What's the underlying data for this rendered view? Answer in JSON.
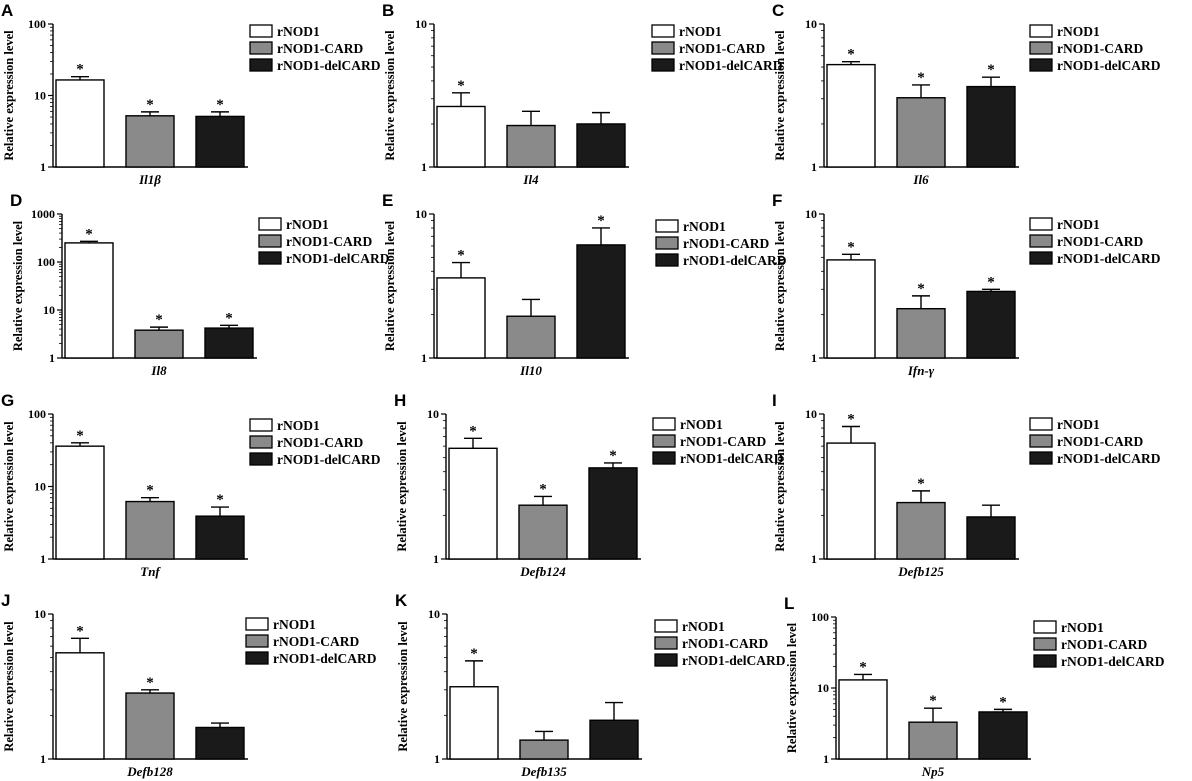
{
  "figure": {
    "legend": [
      "rNOD1",
      "rNOD1-CARD",
      "rNOD1-delCARD"
    ],
    "bar_colors": [
      "#ffffff",
      "#8a8a8a",
      "#1a1a1a"
    ],
    "ylabel": "Relative  expression level"
  },
  "chart_data": [
    {
      "type": "bar",
      "panel": "A",
      "gene": "Il1β",
      "scale": "log",
      "ylim": [
        1,
        100
      ],
      "ticks": [
        "1",
        "10",
        "100"
      ],
      "series": [
        {
          "name": "rNOD1",
          "value": 16.5,
          "error": 1.8,
          "sig": true
        },
        {
          "name": "rNOD1-CARD",
          "value": 5.2,
          "error": 0.7,
          "sig": true
        },
        {
          "name": "rNOD1-delCARD",
          "value": 5.1,
          "error": 0.8,
          "sig": true
        }
      ]
    },
    {
      "type": "bar",
      "panel": "B",
      "gene": "Il4",
      "scale": "log",
      "ylim": [
        1,
        10
      ],
      "ticks": [
        "1",
        "10"
      ],
      "series": [
        {
          "name": "rNOD1",
          "value": 2.65,
          "error": 0.65,
          "sig": true
        },
        {
          "name": "rNOD1-CARD",
          "value": 1.95,
          "error": 0.5,
          "sig": false
        },
        {
          "name": "rNOD1-delCARD",
          "value": 2.0,
          "error": 0.4,
          "sig": false
        }
      ]
    },
    {
      "type": "bar",
      "panel": "C",
      "gene": "Il6",
      "scale": "log",
      "ylim": [
        1,
        10
      ],
      "ticks": [
        "1",
        "10"
      ],
      "series": [
        {
          "name": "rNOD1",
          "value": 5.2,
          "error": 0.25,
          "sig": true
        },
        {
          "name": "rNOD1-CARD",
          "value": 3.05,
          "error": 0.7,
          "sig": true
        },
        {
          "name": "rNOD1-delCARD",
          "value": 3.65,
          "error": 0.6,
          "sig": true
        }
      ]
    },
    {
      "type": "bar",
      "panel": "D",
      "gene": "Il8",
      "scale": "log",
      "ylim": [
        1,
        1000
      ],
      "ticks": [
        "1",
        "10",
        "100",
        "1000"
      ],
      "series": [
        {
          "name": "rNOD1",
          "value": 250,
          "error": 20,
          "sig": true
        },
        {
          "name": "rNOD1-CARD",
          "value": 3.8,
          "error": 0.6,
          "sig": true
        },
        {
          "name": "rNOD1-delCARD",
          "value": 4.2,
          "error": 0.6,
          "sig": true
        }
      ]
    },
    {
      "type": "bar",
      "panel": "E",
      "gene": "Il10",
      "scale": "log",
      "ylim": [
        1,
        10
      ],
      "ticks": [
        "1",
        "10"
      ],
      "series": [
        {
          "name": "rNOD1",
          "value": 3.6,
          "error": 1.0,
          "sig": true
        },
        {
          "name": "rNOD1-CARD",
          "value": 1.95,
          "error": 0.6,
          "sig": false
        },
        {
          "name": "rNOD1-delCARD",
          "value": 6.1,
          "error": 1.9,
          "sig": true
        }
      ]
    },
    {
      "type": "bar",
      "panel": "F",
      "gene": "Ifn-γ",
      "scale": "log",
      "ylim": [
        1,
        10
      ],
      "ticks": [
        "1",
        "10"
      ],
      "series": [
        {
          "name": "rNOD1",
          "value": 4.8,
          "error": 0.45,
          "sig": true
        },
        {
          "name": "rNOD1-CARD",
          "value": 2.2,
          "error": 0.5,
          "sig": true
        },
        {
          "name": "rNOD1-delCARD",
          "value": 2.9,
          "error": 0.1,
          "sig": true
        }
      ]
    },
    {
      "type": "bar",
      "panel": "G",
      "gene": "Tnf",
      "scale": "log",
      "ylim": [
        1,
        100
      ],
      "ticks": [
        "1",
        "10",
        "100"
      ],
      "series": [
        {
          "name": "rNOD1",
          "value": 36,
          "error": 4,
          "sig": true
        },
        {
          "name": "rNOD1-CARD",
          "value": 6.2,
          "error": 0.8,
          "sig": true
        },
        {
          "name": "rNOD1-delCARD",
          "value": 3.9,
          "error": 1.3,
          "sig": true
        }
      ]
    },
    {
      "type": "bar",
      "panel": "H",
      "gene": "Defb124",
      "scale": "log",
      "ylim": [
        1,
        10
      ],
      "ticks": [
        "1",
        "10"
      ],
      "series": [
        {
          "name": "rNOD1",
          "value": 5.8,
          "error": 1.0,
          "sig": true
        },
        {
          "name": "rNOD1-CARD",
          "value": 2.35,
          "error": 0.35,
          "sig": true
        },
        {
          "name": "rNOD1-delCARD",
          "value": 4.25,
          "error": 0.35,
          "sig": true
        }
      ]
    },
    {
      "type": "bar",
      "panel": "I",
      "gene": "Defb125",
      "scale": "log",
      "ylim": [
        1,
        10
      ],
      "ticks": [
        "1",
        "10"
      ],
      "series": [
        {
          "name": "rNOD1",
          "value": 6.3,
          "error": 1.9,
          "sig": true
        },
        {
          "name": "rNOD1-CARD",
          "value": 2.45,
          "error": 0.5,
          "sig": true
        },
        {
          "name": "rNOD1-delCARD",
          "value": 1.95,
          "error": 0.4,
          "sig": false
        }
      ]
    },
    {
      "type": "bar",
      "panel": "J",
      "gene": "Defb128",
      "scale": "log",
      "ylim": [
        1,
        10
      ],
      "ticks": [
        "1",
        "10"
      ],
      "series": [
        {
          "name": "rNOD1",
          "value": 5.4,
          "error": 1.4,
          "sig": true
        },
        {
          "name": "rNOD1-CARD",
          "value": 2.85,
          "error": 0.15,
          "sig": true
        },
        {
          "name": "rNOD1-delCARD",
          "value": 1.65,
          "error": 0.12,
          "sig": false
        }
      ]
    },
    {
      "type": "bar",
      "panel": "K",
      "gene": "Defb135",
      "scale": "log",
      "ylim": [
        1,
        10
      ],
      "ticks": [
        "1",
        "10"
      ],
      "series": [
        {
          "name": "rNOD1",
          "value": 3.15,
          "error": 1.6,
          "sig": true
        },
        {
          "name": "rNOD1-CARD",
          "value": 1.35,
          "error": 0.2,
          "sig": false
        },
        {
          "name": "rNOD1-delCARD",
          "value": 1.85,
          "error": 0.6,
          "sig": false
        }
      ]
    },
    {
      "type": "bar",
      "panel": "L",
      "gene": "Np5",
      "scale": "log",
      "ylim": [
        1,
        100
      ],
      "ticks": [
        "1",
        "10",
        "100"
      ],
      "series": [
        {
          "name": "rNOD1",
          "value": 13,
          "error": 2.5,
          "sig": true
        },
        {
          "name": "rNOD1-CARD",
          "value": 3.3,
          "error": 1.9,
          "sig": true
        },
        {
          "name": "rNOD1-delCARD",
          "value": 4.6,
          "error": 0.4,
          "sig": true
        }
      ]
    }
  ]
}
